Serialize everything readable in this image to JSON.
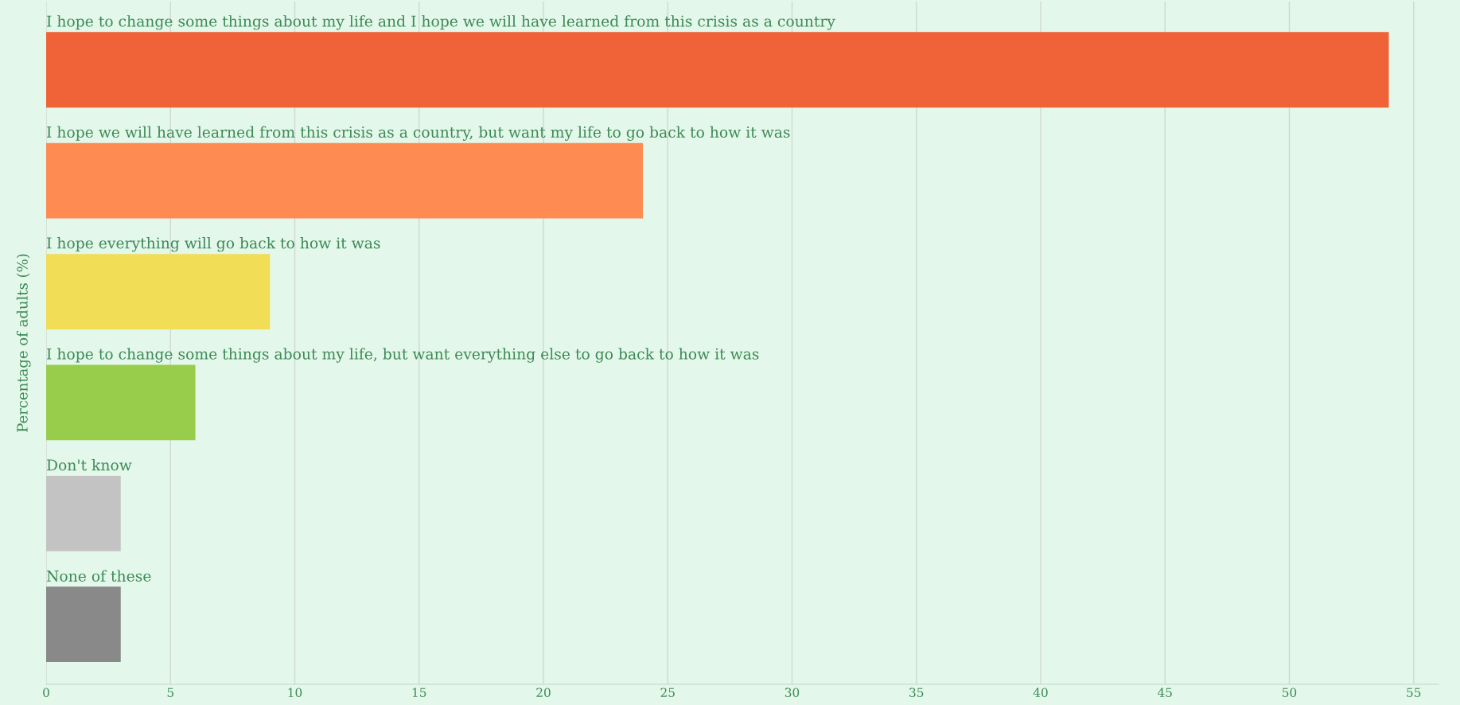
{
  "chart_data": {
    "type": "bar",
    "orientation": "horizontal",
    "ylabel": "Percentage of adults (%)",
    "categories": [
      "I hope to change some things about my life and I hope we will have learned from this crisis as a country",
      "I hope we will have learned from this crisis as a country, but want my life to go back to how it was",
      "I hope everything will go back to how it was",
      "I hope to change some things about my life, but want everything else to go back to how it was",
      "Don't know",
      "None of these"
    ],
    "values": [
      54,
      24,
      9,
      6,
      3,
      3
    ],
    "colors": [
      "#f06237",
      "#fe8c52",
      "#f2dd57",
      "#98cd4c",
      "#c3c3c3",
      "#898989"
    ],
    "xlim": [
      0,
      56
    ],
    "xticks": [
      0,
      5,
      10,
      15,
      20,
      25,
      30,
      35,
      40,
      45,
      50,
      55
    ],
    "grid": "x"
  }
}
